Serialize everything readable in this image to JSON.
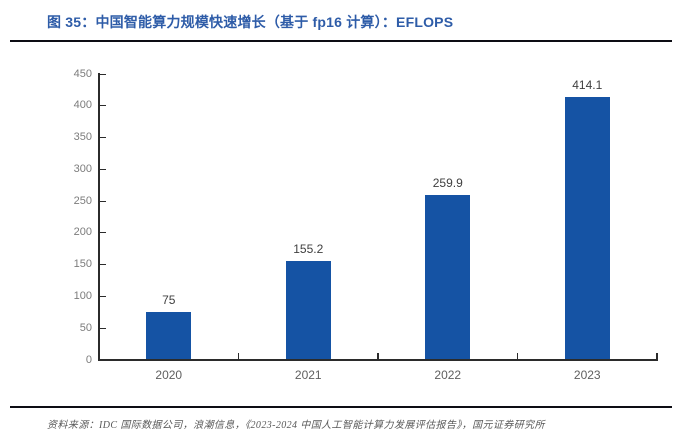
{
  "figure": {
    "title": "图 35：中国智能算力规模快速增长（基于 fp16 计算）：EFLOPS",
    "source": "资料来源：IDC 国际数据公司，浪潮信息，《2023-2024 中国人工智能计算力发展评估报告》，国元证券研究所"
  },
  "colors": {
    "title_blue": "#2e5ca8",
    "bar_blue": "#1553a4",
    "rule_black": "#0d0d14",
    "axis_dark": "#2b2b2b",
    "ytick_label_gray": "#7c7c7c",
    "xtick_label_gray": "#5f5f5f",
    "data_label_gray": "#3f3f3f",
    "source_gray": "#595959"
  },
  "chart_data": {
    "type": "bar",
    "categories": [
      "2020",
      "2021",
      "2022",
      "2023"
    ],
    "values": [
      75,
      155.2,
      259.9,
      414.1
    ],
    "data_labels": [
      "75",
      "155.2",
      "259.9",
      "414.1"
    ],
    "title": "中国智能算力规模快速增长（基于 fp16 计算）",
    "xlabel": "",
    "ylabel": "EFLOPS",
    "ylim": [
      0,
      450
    ],
    "ytick_step": 50,
    "yticks": [
      0,
      50,
      100,
      150,
      200,
      250,
      300,
      350,
      400,
      450
    ],
    "grid": false,
    "legend_position": "none",
    "bar_color": "#1553a4",
    "data_labels_shown": true
  }
}
